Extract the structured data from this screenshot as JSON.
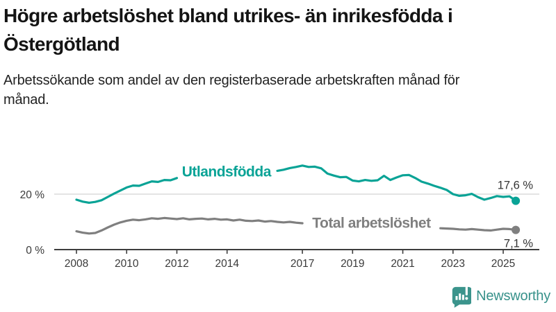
{
  "header": {
    "title": "Högre arbetslöshet bland utrikes- än inrikesfödda i Östergötland",
    "subtitle": "Arbetssökande som andel av den registerbaserade arbetskraften månad för månad."
  },
  "chart_data": {
    "type": "line",
    "title": "Högre arbetslöshet bland utrikes- än inrikesfödda i Östergötland",
    "subtitle": "Arbetssökande som andel av den registerbaserade arbetskraften månad för månad.",
    "xlabel": "",
    "ylabel": "",
    "x_start": 2008,
    "x_step": 0.25,
    "x_range": [
      2008,
      2025.5
    ],
    "ylim": [
      0,
      32
    ],
    "grid": "single horizontal gridline at 20 %",
    "legend_position": "inline labels on lines",
    "x_ticks": [
      {
        "label": "2008",
        "year": 2008
      },
      {
        "label": "2010",
        "year": 2010
      },
      {
        "label": "2012",
        "year": 2012
      },
      {
        "label": "2014",
        "year": 2014
      },
      {
        "label": "2017",
        "year": 2017
      },
      {
        "label": "2019",
        "year": 2019
      },
      {
        "label": "2021",
        "year": 2021
      },
      {
        "label": "2023",
        "year": 2023
      },
      {
        "label": "2025",
        "year": 2025
      }
    ],
    "y_ticks": [
      {
        "label": "20 %",
        "value": 20
      },
      {
        "label": "0 %",
        "value": 0
      }
    ],
    "series": [
      {
        "id": "utlandsfodda",
        "name": "Utlandsfödda",
        "color": "#0aa396",
        "end_label": "17,6 %",
        "end_value": 17.6,
        "label_gap": [
          2012.0,
          2015.95
        ],
        "values": [
          18.0,
          17.3,
          16.9,
          17.2,
          17.8,
          19.0,
          20.2,
          21.3,
          22.4,
          23.1,
          23.0,
          23.8,
          24.6,
          24.4,
          25.1,
          25.0,
          25.8,
          25.6,
          26.3,
          26.0,
          26.6,
          26.3,
          26.9,
          26.6,
          27.1,
          26.8,
          27.2,
          26.9,
          27.4,
          27.1,
          27.7,
          27.9,
          28.4,
          28.8,
          29.4,
          29.8,
          30.3,
          29.8,
          29.9,
          29.3,
          27.4,
          26.7,
          26.1,
          26.2,
          24.9,
          24.6,
          25.1,
          24.8,
          25.0,
          26.6,
          25.1,
          26.0,
          26.8,
          26.9,
          25.8,
          24.5,
          23.8,
          23.0,
          22.3,
          21.5,
          20.0,
          19.4,
          19.6,
          20.1,
          18.9,
          18.0,
          18.6,
          19.3,
          19.0,
          19.2,
          17.6
        ]
      },
      {
        "id": "total",
        "name": "Total arbetslöshet",
        "color": "#7f7f7f",
        "end_label": "7,1 %",
        "end_value": 7.1,
        "label_gap": [
          2017.05,
          2022.45
        ],
        "values": [
          6.6,
          6.1,
          5.8,
          6.0,
          6.9,
          8.0,
          9.0,
          9.8,
          10.4,
          10.8,
          10.6,
          10.9,
          11.3,
          11.1,
          11.4,
          11.2,
          11.0,
          11.3,
          10.9,
          11.1,
          11.2,
          10.9,
          11.1,
          10.8,
          10.9,
          10.5,
          10.8,
          10.4,
          10.3,
          10.5,
          10.1,
          10.3,
          10.0,
          9.8,
          10.0,
          9.7,
          9.5,
          9.3,
          9.5,
          9.2,
          9.1,
          8.9,
          9.0,
          8.8,
          8.7,
          8.6,
          8.8,
          8.9,
          9.4,
          9.9,
          9.7,
          9.5,
          9.2,
          8.9,
          8.5,
          8.2,
          8.0,
          7.8,
          7.7,
          7.6,
          7.5,
          7.3,
          7.2,
          7.4,
          7.2,
          7.0,
          6.9,
          7.2,
          7.5,
          7.4,
          7.1
        ]
      }
    ]
  },
  "colors": {
    "accent_teal": "#0aa396",
    "series_gray": "#7f7f7f",
    "gridline": "#dcdcdc",
    "axis": "#3d3d3d",
    "text_dark": "#333333",
    "brand_teal": "#37918a"
  },
  "footer": {
    "brand": "Newsworthy"
  }
}
